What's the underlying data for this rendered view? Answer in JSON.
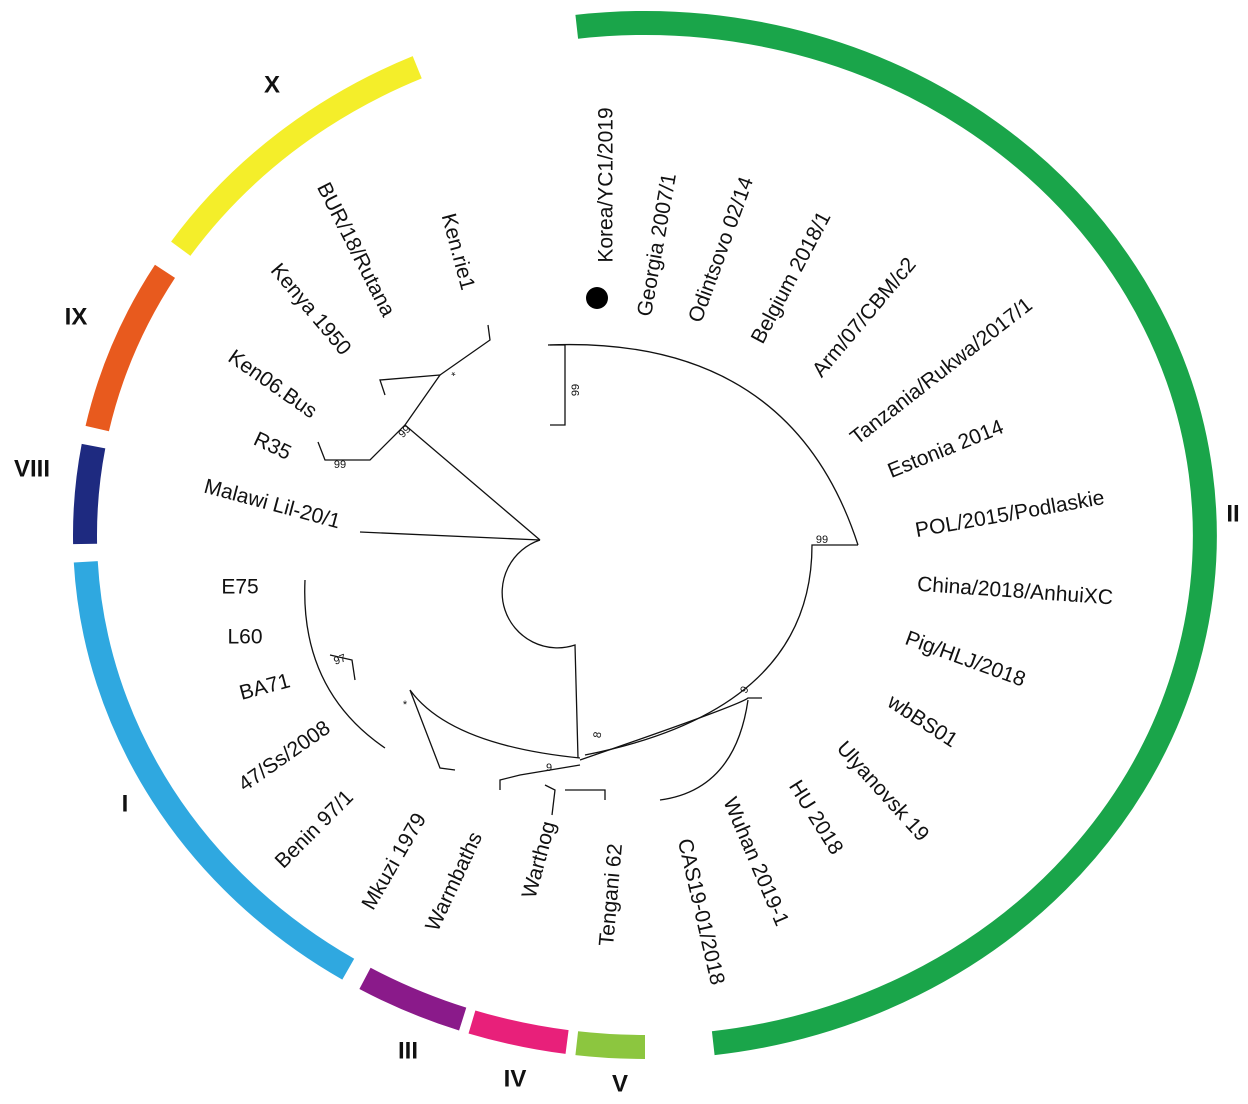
{
  "genotypes": [
    {
      "label": "II",
      "color": "#1aa54a"
    },
    {
      "label": "X",
      "color": "#f4ee2a"
    },
    {
      "label": "IX",
      "color": "#e85a1e"
    },
    {
      "label": "VIII",
      "color": "#1e2a80"
    },
    {
      "label": "I",
      "color": "#2fa8e0"
    },
    {
      "label": "III",
      "color": "#8a1a8a"
    },
    {
      "label": "IV",
      "color": "#e8207a"
    },
    {
      "label": "V",
      "color": "#8cc63f"
    }
  ],
  "taxa": [
    "Korea/YC1/2019",
    "Georgia 2007/1",
    "Odintsovo 02/14",
    "Belgium 2018/1",
    "Arm/07/CBM/c2",
    "Tanzania/Rukwa/2017/1",
    "Estonia 2014",
    "POL/2015/Podlaskie",
    "China/2018/AnhuiXC",
    "Pig/HLJ/2018",
    "wbBS01",
    "Ulyanovsk 19",
    "HU 2018",
    "Wuhan 2019-1",
    "CAS19-01/2018",
    "Tengani 62",
    "Warthog",
    "Warmbaths",
    "Mkuzi 1979",
    "Benin 97/1",
    "47/Ss/2008",
    "BA71",
    "L60",
    "E75",
    "Malawi Lil-20/1",
    "R35",
    "Ken06.Bus",
    "Kenya 1950",
    "BUR/18/Rutana",
    "Ken.rie1"
  ],
  "support": [
    "99",
    "*",
    "99",
    "99",
    "99",
    "97",
    "*",
    "8",
    "9",
    "9"
  ]
}
